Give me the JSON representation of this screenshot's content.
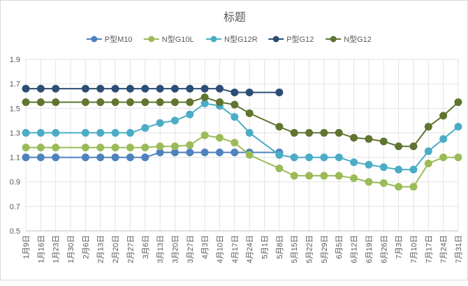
{
  "chart_data": {
    "type": "line",
    "title": "标题",
    "xlabel": "",
    "ylabel": "",
    "ylim": [
      0.5,
      1.9
    ],
    "yticks": [
      0.5,
      0.7,
      0.9,
      1.1,
      1.3,
      1.5,
      1.7,
      1.9
    ],
    "grid": true,
    "legend_position": "top-center",
    "categories": [
      "1月9日",
      "1月16日",
      "1月23日",
      "1月30日",
      "2月6日",
      "2月13日",
      "2月20日",
      "2月27日",
      "3月6日",
      "3月13日",
      "3月20日",
      "3月27日",
      "4月3日",
      "4月10日",
      "4月17日",
      "4月24日",
      "5月1日",
      "5月8日",
      "5月15日",
      "5月22日",
      "5月29日",
      "6月5日",
      "6月12日",
      "6月19日",
      "6月26日",
      "7月3日",
      "7月10日",
      "7月17日",
      "7月24日",
      "7月31日"
    ],
    "series": [
      {
        "name": "P型M10",
        "color": "#4f81bd",
        "values": [
          1.1,
          1.1,
          1.1,
          null,
          1.1,
          1.1,
          1.1,
          1.1,
          1.1,
          1.14,
          1.14,
          1.14,
          1.14,
          1.14,
          1.14,
          1.14,
          null,
          1.14,
          null,
          null,
          null,
          null,
          null,
          null,
          null,
          null,
          null,
          null,
          null,
          null
        ]
      },
      {
        "name": "N型G10L",
        "color": "#9bbb59",
        "values": [
          1.18,
          1.18,
          1.18,
          null,
          1.18,
          1.18,
          1.18,
          1.18,
          1.18,
          1.19,
          1.19,
          1.2,
          1.28,
          1.26,
          1.22,
          1.12,
          null,
          1.01,
          0.95,
          0.95,
          0.95,
          0.95,
          0.93,
          0.9,
          0.89,
          0.86,
          0.86,
          1.05,
          1.1,
          1.1
        ]
      },
      {
        "name": "N型G12R",
        "color": "#4bacc6",
        "values": [
          1.3,
          1.3,
          1.3,
          null,
          1.3,
          1.3,
          1.3,
          1.3,
          1.34,
          1.38,
          1.4,
          1.45,
          1.54,
          1.52,
          1.43,
          1.3,
          null,
          1.12,
          1.1,
          1.1,
          1.1,
          1.1,
          1.06,
          1.04,
          1.02,
          1.0,
          1.0,
          1.15,
          1.25,
          1.35
        ]
      },
      {
        "name": "P型G12",
        "color": "#2c4d75",
        "values": [
          1.66,
          1.66,
          1.66,
          null,
          1.66,
          1.66,
          1.66,
          1.66,
          1.66,
          1.66,
          1.66,
          1.66,
          1.66,
          1.66,
          1.63,
          1.63,
          null,
          1.63,
          null,
          null,
          null,
          null,
          null,
          null,
          null,
          null,
          null,
          null,
          null,
          null
        ]
      },
      {
        "name": "N型G12",
        "color": "#5f7530",
        "values": [
          1.55,
          1.55,
          1.55,
          null,
          1.55,
          1.55,
          1.55,
          1.55,
          1.55,
          1.55,
          1.55,
          1.55,
          1.59,
          1.55,
          1.53,
          1.46,
          null,
          1.35,
          1.3,
          1.3,
          1.3,
          1.3,
          1.26,
          1.25,
          1.23,
          1.19,
          1.19,
          1.35,
          1.44,
          1.55
        ]
      }
    ]
  }
}
